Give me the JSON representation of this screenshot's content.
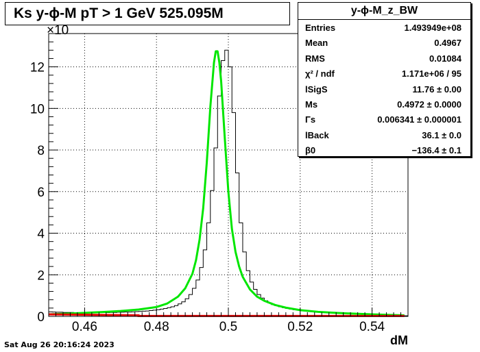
{
  "title": "Ks y-ϕ-M pT > 1 GeV  525.095M",
  "footer": "Sat Aug 26 20:16:24 2023",
  "stats": {
    "name": "y-ϕ-M_z_BW",
    "rows": [
      {
        "key": "Entries",
        "value": "1.493949e+08"
      },
      {
        "key": "Mean",
        "value": "0.4967"
      },
      {
        "key": "RMS",
        "value": "0.01084"
      },
      {
        "key": "χ² / ndf",
        "value": "1.171e+06 / 95"
      },
      {
        "key": "lSigS",
        "value": "11.76 ± 0.00"
      },
      {
        "key": "Ms",
        "value": "0.4972 ± 0.0000"
      },
      {
        "key": "Γs",
        "value": "0.006341 ± 0.000001"
      },
      {
        "key": "lBack",
        "value": "36.1 ± 0.0"
      },
      {
        "key": "β0",
        "value": "−136.4 ± 0.1"
      }
    ]
  },
  "colors": {
    "histogram": "#000000",
    "fit": "#00e600",
    "background": "#e60000"
  },
  "chart_data": {
    "type": "line",
    "title": "Ks y-ϕ-M pT > 1 GeV  525.095M",
    "xlabel": "dM",
    "ylabel": "",
    "y_multiplier_label": "×10",
    "xlim": [
      0.45,
      0.55
    ],
    "ylim": [
      0,
      13.6
    ],
    "xticks": [
      0.46,
      0.48,
      0.5,
      0.52,
      0.54
    ],
    "xtick_labels": [
      "0.46",
      "0.48",
      "0.5",
      "0.52",
      "0.54"
    ],
    "yticks": [
      0,
      2,
      4,
      6,
      8,
      10,
      12
    ],
    "ytick_labels": [
      "0",
      "2",
      "4",
      "6",
      "8",
      "10",
      "12"
    ],
    "grid": true,
    "histogram": {
      "name": "y-ϕ-M_z_BW",
      "bin_edges_start": 0.45,
      "bin_width": 0.001,
      "values": [
        0.22,
        0.21,
        0.2,
        0.2,
        0.19,
        0.19,
        0.19,
        0.18,
        0.18,
        0.18,
        0.18,
        0.18,
        0.18,
        0.18,
        0.18,
        0.18,
        0.18,
        0.19,
        0.19,
        0.2,
        0.2,
        0.21,
        0.21,
        0.22,
        0.23,
        0.24,
        0.25,
        0.26,
        0.28,
        0.3,
        0.32,
        0.35,
        0.38,
        0.42,
        0.46,
        0.52,
        0.6,
        0.7,
        0.85,
        1.05,
        1.35,
        1.75,
        2.35,
        3.2,
        4.5,
        6.05,
        8.1,
        10.6,
        12.3,
        12.8,
        12.0,
        9.8,
        6.9,
        4.5,
        3.1,
        2.2,
        1.65,
        1.3,
        1.05,
        0.88,
        0.75,
        0.65,
        0.57,
        0.51,
        0.46,
        0.42,
        0.38,
        0.35,
        0.32,
        0.3,
        0.28,
        0.26,
        0.24,
        0.22,
        0.21,
        0.2,
        0.19,
        0.18,
        0.17,
        0.16,
        0.15,
        0.14,
        0.13,
        0.12,
        0.11,
        0.1,
        0.1,
        0.09,
        0.08,
        0.08,
        0.07,
        0.07,
        0.06,
        0.06,
        0.05,
        0.05,
        0.04,
        0.04,
        0.03,
        0.03
      ]
    },
    "fit": {
      "name": "fit",
      "x": [
        0.45,
        0.455,
        0.46,
        0.465,
        0.47,
        0.475,
        0.48,
        0.483,
        0.486,
        0.488,
        0.49,
        0.491,
        0.492,
        0.493,
        0.494,
        0.495,
        0.496,
        0.4965,
        0.497,
        0.4975,
        0.498,
        0.499,
        0.5,
        0.501,
        0.502,
        0.503,
        0.504,
        0.506,
        0.508,
        0.51,
        0.513,
        0.516,
        0.52,
        0.525,
        0.53,
        0.535,
        0.54,
        0.545,
        0.549
      ],
      "y": [
        0.1,
        0.13,
        0.17,
        0.21,
        0.26,
        0.33,
        0.45,
        0.62,
        0.95,
        1.35,
        2.05,
        2.7,
        3.7,
        5.2,
        7.4,
        10.1,
        12.2,
        12.75,
        12.75,
        12.2,
        11.3,
        8.6,
        6.0,
        4.2,
        3.1,
        2.4,
        1.9,
        1.3,
        0.95,
        0.75,
        0.55,
        0.42,
        0.3,
        0.22,
        0.17,
        0.13,
        0.1,
        0.07,
        0.05
      ]
    },
    "background": {
      "name": "background",
      "x": [
        0.45,
        0.475,
        0.475,
        0.5,
        0.525,
        0.549
      ],
      "y": [
        0.1,
        0.05,
        0.02,
        0.02,
        0.02,
        0.02
      ]
    }
  }
}
